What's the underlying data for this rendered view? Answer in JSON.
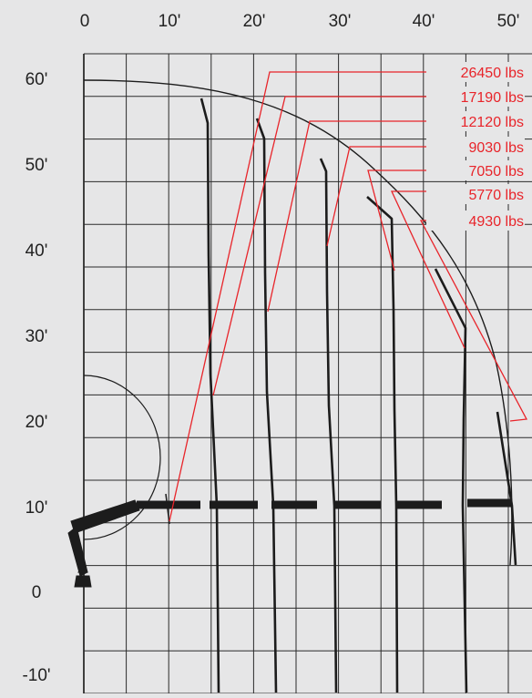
{
  "colors": {
    "background": "#e6e6e7",
    "grid": "#2b2b2b",
    "curves": "#1c1c1c",
    "labels": "#e8242a"
  },
  "x_ticks": [
    "0",
    "10'",
    "20'",
    "30'",
    "40'",
    "50'"
  ],
  "y_ticks": [
    "60'",
    "50'",
    "40'",
    "30'",
    "20'",
    "10'",
    "0",
    "-10'"
  ],
  "load_labels": [
    {
      "text": "26450 lbs"
    },
    {
      "text": "17190 lbs"
    },
    {
      "text": "12120 lbs"
    },
    {
      "text": "9030 lbs"
    },
    {
      "text": "7050 lbs"
    },
    {
      "text": "5770 lbs"
    },
    {
      "text": "4930 lbs"
    }
  ]
}
